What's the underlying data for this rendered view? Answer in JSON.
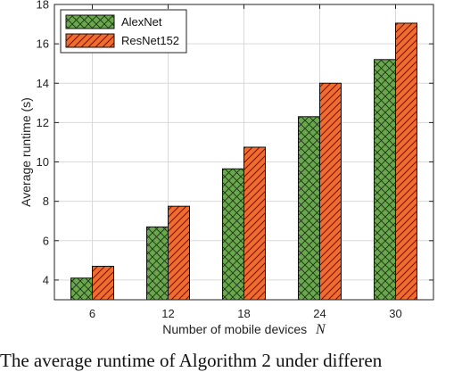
{
  "chart_data": {
    "type": "bar",
    "categories": [
      "6",
      "12",
      "18",
      "24",
      "30"
    ],
    "series": [
      {
        "name": "AlexNet",
        "values": [
          4.1,
          6.7,
          9.65,
          12.3,
          15.2
        ],
        "color": "#6aa84f",
        "pattern": "crosshatch"
      },
      {
        "name": "ResNet152",
        "values": [
          4.7,
          7.75,
          10.75,
          14.0,
          17.05
        ],
        "color": "#f26a2e",
        "pattern": "diagonal"
      }
    ],
    "title": "",
    "xlabel": "Number of mobile devices",
    "xlabel_symbol": "N",
    "ylabel": "Average runtime (s)",
    "ylim": [
      3,
      18
    ],
    "yticks": [
      4,
      6,
      8,
      10,
      12,
      14,
      16,
      18
    ],
    "grid": true,
    "legend_position": "top-left"
  },
  "caption": "The average runtime of Algorithm 2 under differen"
}
